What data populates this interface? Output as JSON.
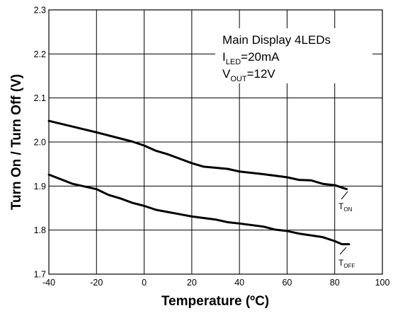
{
  "chart_data": {
    "type": "line",
    "title": "",
    "xlabel": "Temperature (ºC)",
    "ylabel": "Turn On / Turn Off (V)",
    "xlim": [
      -40,
      100
    ],
    "ylim": [
      1.7,
      2.3
    ],
    "x_ticks": [
      "-40",
      "-20",
      "0",
      "20",
      "40",
      "60",
      "80",
      "100"
    ],
    "y_ticks": [
      "1.7",
      "1.8",
      "1.9",
      "2.0",
      "2.1",
      "2.2",
      "2.3"
    ],
    "grid": true,
    "annotation": {
      "line1": "Main Display 4LEDs",
      "line2_main": "I",
      "line2_sub": "LED",
      "line2_rest": "=20mA",
      "line3_main": "V",
      "line3_sub": "OUT",
      "line3_rest": "=12V"
    },
    "series": [
      {
        "label_main": "T",
        "label_sub": "ON",
        "color": "#000000",
        "points": [
          [
            -40,
            2.048
          ],
          [
            -30,
            2.035
          ],
          [
            -20,
            2.022
          ],
          [
            -10,
            2.008
          ],
          [
            -5,
            2.001
          ],
          [
            0,
            1.992
          ],
          [
            5,
            1.98
          ],
          [
            10,
            1.972
          ],
          [
            20,
            1.952
          ],
          [
            25,
            1.944
          ],
          [
            35,
            1.939
          ],
          [
            40,
            1.933
          ],
          [
            50,
            1.927
          ],
          [
            60,
            1.92
          ],
          [
            65,
            1.914
          ],
          [
            70,
            1.913
          ],
          [
            75,
            1.905
          ],
          [
            80,
            1.902
          ],
          [
            85,
            1.893
          ]
        ]
      },
      {
        "label_main": "T",
        "label_sub": "OFF",
        "color": "#000000",
        "points": [
          [
            -40,
            1.926
          ],
          [
            -30,
            1.905
          ],
          [
            -20,
            1.893
          ],
          [
            -15,
            1.88
          ],
          [
            -10,
            1.872
          ],
          [
            -5,
            1.862
          ],
          [
            0,
            1.855
          ],
          [
            5,
            1.846
          ],
          [
            10,
            1.841
          ],
          [
            20,
            1.831
          ],
          [
            30,
            1.824
          ],
          [
            35,
            1.818
          ],
          [
            40,
            1.815
          ],
          [
            50,
            1.808
          ],
          [
            55,
            1.801
          ],
          [
            60,
            1.798
          ],
          [
            65,
            1.792
          ],
          [
            70,
            1.788
          ],
          [
            75,
            1.784
          ],
          [
            80,
            1.775
          ],
          [
            83,
            1.768
          ],
          [
            86,
            1.768
          ]
        ]
      }
    ]
  }
}
